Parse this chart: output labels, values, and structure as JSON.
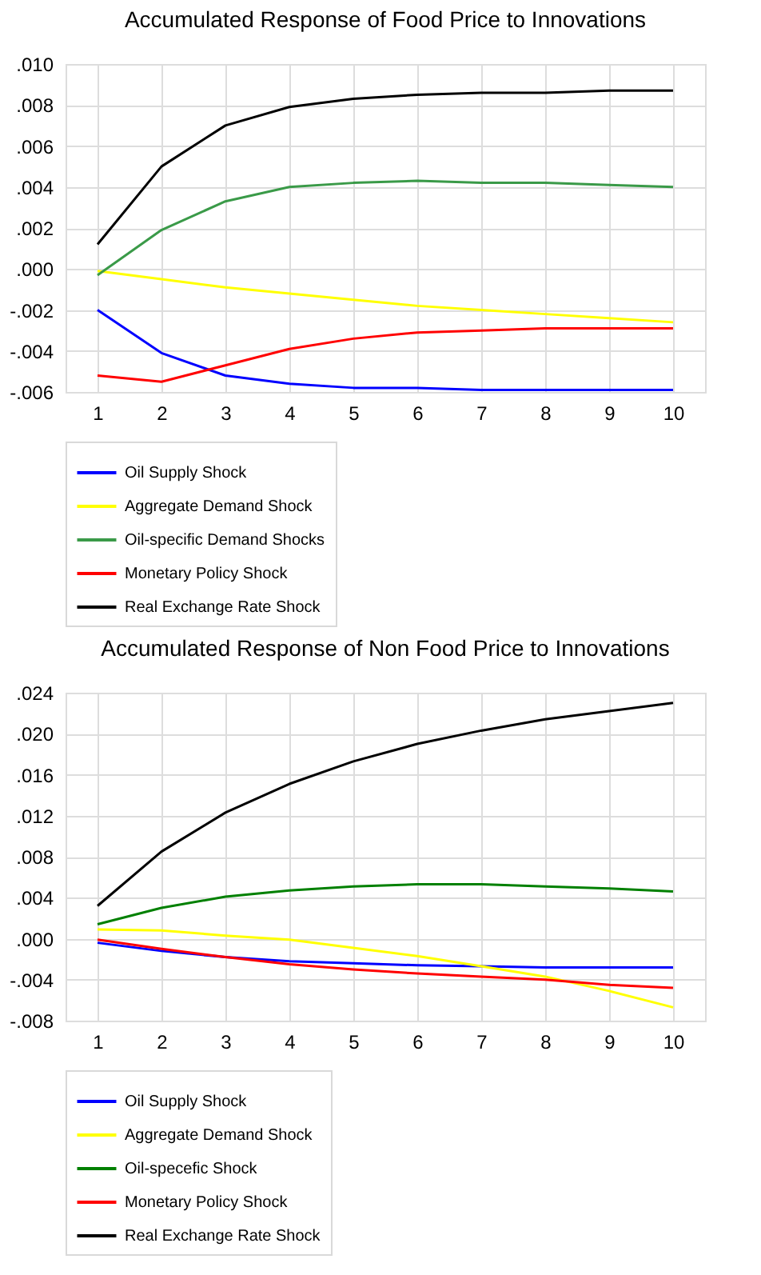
{
  "chart_data": [
    {
      "type": "line",
      "title": "Accumulated Response of Food Price to Innovations",
      "categories": [
        "1",
        "2",
        "3",
        "4",
        "5",
        "6",
        "7",
        "8",
        "9",
        "10"
      ],
      "series": [
        {
          "name": "Oil Supply Shock",
          "color": "#0000ff",
          "values": [
            -0.002,
            -0.0041,
            -0.0052,
            -0.0056,
            -0.0058,
            -0.0058,
            -0.0059,
            -0.0059,
            -0.0059,
            -0.0059
          ]
        },
        {
          "name": "Aggregate Demand Shock",
          "color": "#ffff00",
          "values": [
            -0.0001,
            -0.0005,
            -0.0009,
            -0.0012,
            -0.0015,
            -0.0018,
            -0.002,
            -0.0022,
            -0.0024,
            -0.0026
          ]
        },
        {
          "name": "Oil-specific Demand Shocks",
          "color": "#3a9a48",
          "values": [
            -0.0003,
            0.0019,
            0.0033,
            0.004,
            0.0042,
            0.0043,
            0.0042,
            0.0042,
            0.0041,
            0.004
          ]
        },
        {
          "name": "Monetary Policy Shock",
          "color": "#ff0000",
          "values": [
            -0.0052,
            -0.0055,
            -0.0047,
            -0.0039,
            -0.0034,
            -0.0031,
            -0.003,
            -0.0029,
            -0.0029,
            -0.0029
          ]
        },
        {
          "name": "Real Exchange Rate Shock",
          "color": "#000000",
          "values": [
            0.0012,
            0.005,
            0.007,
            0.0079,
            0.0083,
            0.0085,
            0.0086,
            0.0086,
            0.0087,
            0.0087
          ]
        }
      ],
      "ylim": [
        -0.006,
        0.01
      ],
      "yticks": [
        {
          "value": -0.006,
          "label": "-.006"
        },
        {
          "value": -0.004,
          "label": "-.004"
        },
        {
          "value": -0.002,
          "label": "-.002"
        },
        {
          "value": 0,
          "label": ".000"
        },
        {
          "value": 0.002,
          "label": ".002"
        },
        {
          "value": 0.004,
          "label": ".004"
        },
        {
          "value": 0.006,
          "label": ".006"
        },
        {
          "value": 0.008,
          "label": ".008"
        },
        {
          "value": 0.01,
          "label": ".010"
        }
      ],
      "grid": true,
      "legend": "bottom"
    },
    {
      "type": "line",
      "title": "Accumulated Response of Non Food Price to Innovations",
      "categories": [
        "1",
        "2",
        "3",
        "4",
        "5",
        "6",
        "7",
        "8",
        "9",
        "10"
      ],
      "series": [
        {
          "name": "Oil Supply Shock",
          "color": "#0000ff",
          "values": [
            -0.0004,
            -0.0012,
            -0.0018,
            -0.0022,
            -0.0024,
            -0.0026,
            -0.0027,
            -0.0028,
            -0.0028,
            -0.0028
          ]
        },
        {
          "name": "Aggregate Demand Shock",
          "color": "#ffff00",
          "values": [
            0.0009,
            0.0008,
            0.0003,
            -0.0001,
            -0.0009,
            -0.0017,
            -0.0027,
            -0.0037,
            -0.0051,
            -0.0067
          ]
        },
        {
          "name": "Oil-specefic Shock",
          "color": "#008000",
          "values": [
            0.0014,
            0.003,
            0.0041,
            0.0047,
            0.0051,
            0.0053,
            0.0053,
            0.0051,
            0.0049,
            0.0046
          ]
        },
        {
          "name": "Monetary Policy Shock",
          "color": "#ff0000",
          "values": [
            -0.0001,
            -0.001,
            -0.0018,
            -0.0025,
            -0.003,
            -0.0034,
            -0.0037,
            -0.004,
            -0.0045,
            -0.0048
          ]
        },
        {
          "name": "Real Exchange Rate Shock",
          "color": "#000000",
          "values": [
            0.0032,
            0.0085,
            0.0123,
            0.0151,
            0.0173,
            0.019,
            0.0203,
            0.0214,
            0.0222,
            0.023
          ]
        }
      ],
      "ylim": [
        -0.008,
        0.024
      ],
      "yticks": [
        {
          "value": -0.008,
          "label": "-.008"
        },
        {
          "value": -0.004,
          "label": "-.004"
        },
        {
          "value": 0,
          "label": ".000"
        },
        {
          "value": 0.004,
          "label": ".004"
        },
        {
          "value": 0.008,
          "label": ".008"
        },
        {
          "value": 0.012,
          "label": ".012"
        },
        {
          "value": 0.016,
          "label": ".016"
        },
        {
          "value": 0.02,
          "label": ".020"
        },
        {
          "value": 0.024,
          "label": ".024"
        }
      ],
      "grid": true,
      "legend": "bottom"
    }
  ]
}
